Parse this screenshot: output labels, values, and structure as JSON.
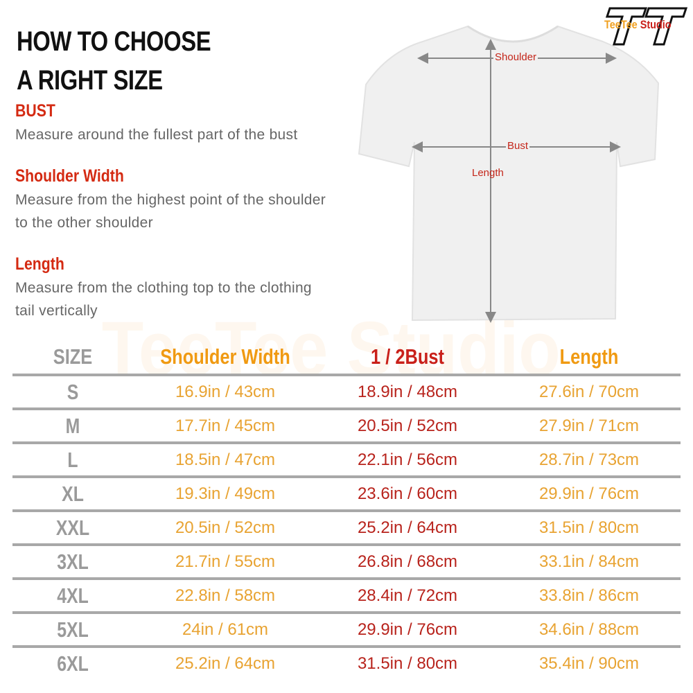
{
  "logo": {
    "text": "TeeTee Studio",
    "mark": "TT"
  },
  "guide": {
    "title_line1": "HOW TO CHOOSE",
    "title_line2": "A RIGHT SIZE",
    "sections": [
      {
        "heading": "BUST",
        "text": "Measure around the fullest part of the bust"
      },
      {
        "heading": "Shoulder Width",
        "text": "Measure from the highest point of the shoulder to the other shoulder"
      },
      {
        "heading": "Length",
        "text": "Measure from the clothing top to the clothing tail vertically"
      }
    ]
  },
  "diagram": {
    "shoulder": "Shoulder",
    "bust": "Bust",
    "length": "Length"
  },
  "table": {
    "headers": [
      "SIZE",
      "Shoulder Width",
      "1 / 2Bust",
      "Length"
    ],
    "rows": [
      [
        "S",
        "16.9in / 43cm",
        "18.9in / 48cm",
        "27.6in / 70cm"
      ],
      [
        "M",
        "17.7in / 45cm",
        "20.5in / 52cm",
        "27.9in / 71cm"
      ],
      [
        "L",
        "18.5in / 47cm",
        "22.1in / 56cm",
        "28.7in / 73cm"
      ],
      [
        "XL",
        "19.3in / 49cm",
        "23.6in / 60cm",
        "29.9in / 76cm"
      ],
      [
        "XXL",
        "20.5in / 52cm",
        "25.2in / 64cm",
        "31.5in / 80cm"
      ],
      [
        "3XL",
        "21.7in / 55cm",
        "26.8in / 68cm",
        "33.1in / 84cm"
      ],
      [
        "4XL",
        "22.8in / 58cm",
        "28.4in / 72cm",
        "33.8in / 86cm"
      ],
      [
        "5XL",
        "24in / 61cm",
        "29.9in / 76cm",
        "34.6in / 88cm"
      ],
      [
        "6XL",
        "25.2in / 64cm",
        "31.5in / 80cm",
        "35.4in / 90cm"
      ]
    ]
  },
  "colors": {
    "heading_red": "#d42a12",
    "orange": "#f09a12",
    "bust_red": "#b8231c",
    "size_gray": "#9a9a9a"
  }
}
